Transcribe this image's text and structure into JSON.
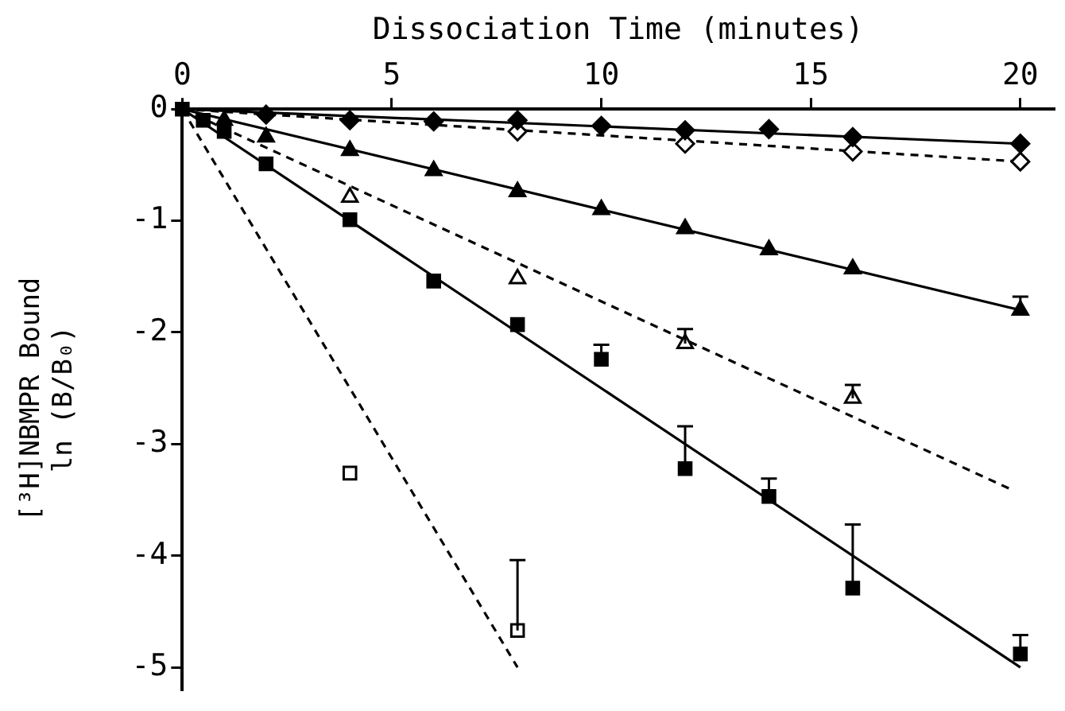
{
  "chart_data": {
    "type": "scatter",
    "xlabel": "Dissociation Time (minutes)",
    "ylabel": "[³H]NBMPR Bound\nln (B/B₀)",
    "xlim": [
      0,
      20.8
    ],
    "xticks": [
      0,
      5,
      10,
      15,
      20
    ],
    "ylim": [
      -5.2,
      0
    ],
    "yticks": [
      0,
      -1,
      -2,
      -3,
      -4,
      -5
    ],
    "grid": false,
    "series": [
      {
        "type": "line",
        "color": "#000000",
        "line_style": "solid",
        "x": [
          0,
          20
        ],
        "values": [
          0,
          -0.31
        ]
      },
      {
        "type": "line",
        "color": "#000000",
        "line_style": "dashed",
        "x": [
          0,
          20
        ],
        "values": [
          0,
          -0.47
        ]
      },
      {
        "type": "line",
        "color": "#000000",
        "line_style": "solid",
        "x": [
          0,
          20
        ],
        "values": [
          0,
          -1.8
        ]
      },
      {
        "type": "line",
        "color": "#000000",
        "line_style": "dashed",
        "x": [
          0,
          19.8
        ],
        "values": [
          0,
          -3.41
        ]
      },
      {
        "type": "line",
        "color": "#000000",
        "line_style": "solid",
        "x": [
          0,
          20
        ],
        "values": [
          0,
          -5
        ]
      },
      {
        "type": "line",
        "color": "#000000",
        "line_style": "dashed",
        "x": [
          0,
          8
        ],
        "values": [
          0,
          -5
        ]
      },
      {
        "marker": "diamond",
        "color": "#000000",
        "x": [
          2,
          4,
          6,
          8,
          10,
          12,
          14,
          16,
          20
        ],
        "values": [
          -0.05,
          -0.1,
          -0.11,
          -0.1,
          -0.15,
          -0.19,
          -0.18,
          -0.25,
          -0.31
        ]
      },
      {
        "marker": "diamond",
        "color": "#ffffff",
        "x": [
          8,
          12,
          16,
          20
        ],
        "values": [
          -0.2,
          -0.31,
          -0.38,
          -0.47
        ]
      },
      {
        "marker": "triangle",
        "color": "#000000",
        "x": [
          1,
          2,
          4,
          6,
          8,
          10,
          12,
          14,
          16,
          20
        ],
        "values": [
          -0.1,
          -0.25,
          -0.37,
          -0.55,
          -0.74,
          -0.9,
          -1.07,
          -1.26,
          -1.43,
          -1.8
        ],
        "errors": [
          null,
          null,
          null,
          null,
          null,
          null,
          null,
          null,
          null,
          [
            -1.8,
            -1.68
          ]
        ]
      },
      {
        "marker": "triangle",
        "color": "#ffffff",
        "x": [
          4,
          8,
          12,
          16
        ],
        "values": [
          -0.79,
          -1.52,
          -2.1,
          -2.59
        ],
        "errors": [
          null,
          null,
          [
            -2.1,
            -1.97
          ],
          [
            -2.59,
            -2.47
          ]
        ]
      },
      {
        "marker": "square",
        "color": "#000000",
        "x": [
          0,
          0.5,
          1,
          2,
          4,
          6,
          8,
          10,
          12,
          14,
          16,
          20
        ],
        "values": [
          0,
          -0.1,
          -0.2,
          -0.49,
          -0.99,
          -1.54,
          -1.93,
          -2.24,
          -3.22,
          -3.47,
          -4.29,
          -4.88
        ],
        "errors": [
          null,
          null,
          null,
          null,
          null,
          null,
          null,
          [
            -2.24,
            -2.11
          ],
          [
            -3.22,
            -2.84
          ],
          [
            -3.47,
            -3.31
          ],
          [
            -4.29,
            -3.72
          ],
          [
            -4.88,
            -4.71
          ]
        ]
      },
      {
        "marker": "square",
        "color": "#ffffff",
        "x": [
          4,
          8
        ],
        "values": [
          -3.26,
          -4.67
        ],
        "errors": [
          null,
          [
            -4.67,
            -4.04
          ]
        ]
      }
    ]
  }
}
